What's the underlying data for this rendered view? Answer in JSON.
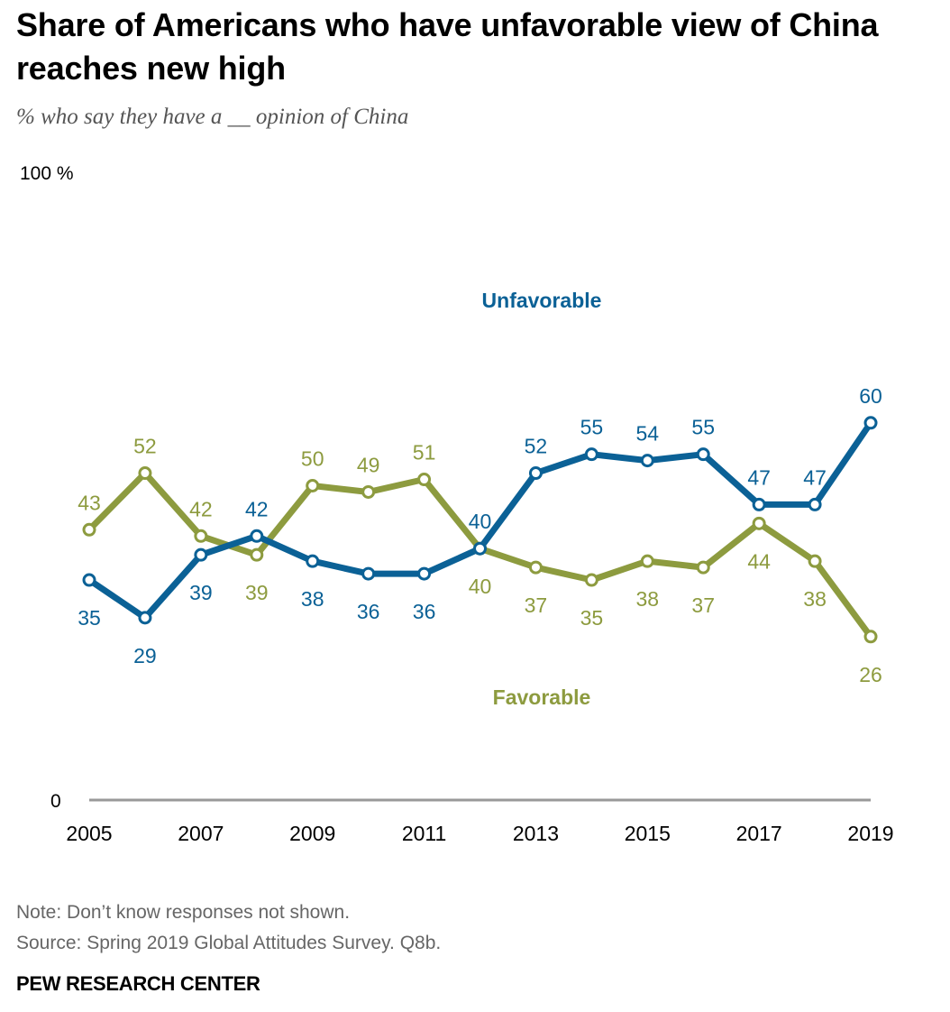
{
  "title": "Share of Americans who have unfavorable view of China reaches new high",
  "subtitle": "% who say they have a __ opinion of China",
  "note": "Note: Don’t know responses not shown.",
  "source": "Source: Spring 2019 Global Attitudes Survey. Q8b.",
  "brand": "PEW RESEARCH CENTER",
  "colors": {
    "unfavorable": "#0b6196",
    "favorable": "#8d9b3f",
    "axis": "#999999"
  },
  "chart_data": {
    "type": "line",
    "x": [
      2005,
      2006,
      2007,
      2008,
      2009,
      2010,
      2011,
      2012,
      2013,
      2014,
      2015,
      2016,
      2017,
      2018,
      2019
    ],
    "x_tick_labels": [
      "2005",
      "2007",
      "2009",
      "2011",
      "2013",
      "2015",
      "2017",
      "2019"
    ],
    "y_tick_labels": [
      "100 %",
      "0"
    ],
    "ylim": [
      0,
      100
    ],
    "grid": false,
    "series": [
      {
        "name": "Unfavorable",
        "color": "#0b6196",
        "values": [
          35,
          29,
          39,
          42,
          38,
          36,
          36,
          40,
          52,
          55,
          54,
          55,
          47,
          47,
          60
        ]
      },
      {
        "name": "Favorable",
        "color": "#8d9b3f",
        "values": [
          43,
          52,
          42,
          39,
          50,
          49,
          51,
          40,
          37,
          35,
          38,
          37,
          44,
          38,
          26
        ]
      }
    ]
  }
}
